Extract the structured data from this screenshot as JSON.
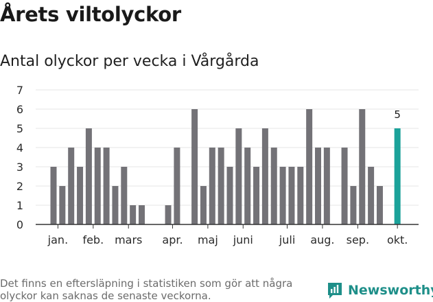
{
  "title": "Årets viltolyckor",
  "subtitle": "Antal olyckor per vecka i Vårgårda",
  "footnote": "Det finns en eftersläpning i statistiken som gör att några olyckor kan saknas de senaste veckorna.",
  "brand": {
    "name": "Newsworthy",
    "icon": "newsworthy-logo-icon",
    "color": "#1e8f89"
  },
  "colors": {
    "bar": "#737277",
    "highlight": "#1ba29a",
    "grid": "#e4e4e4",
    "axis": "#333333"
  },
  "chart_data": {
    "type": "bar",
    "x": [
      1,
      2,
      3,
      4,
      5,
      6,
      7,
      8,
      9,
      10,
      11,
      12,
      13,
      14,
      15,
      16,
      17,
      18,
      19,
      20,
      21,
      22,
      23,
      24,
      25,
      26,
      27,
      28,
      29,
      30,
      31,
      32,
      33,
      34,
      35,
      36,
      37,
      38,
      39,
      40
    ],
    "values": [
      3,
      2,
      4,
      3,
      5,
      4,
      4,
      2,
      3,
      1,
      1,
      0,
      0,
      1,
      4,
      0,
      6,
      2,
      4,
      4,
      3,
      5,
      4,
      3,
      5,
      4,
      3,
      3,
      3,
      6,
      4,
      4,
      0,
      4,
      2,
      6,
      3,
      2,
      0,
      5
    ],
    "highlight_index": 39,
    "data_labels": [
      {
        "index": 39,
        "text": "5"
      }
    ],
    "month_labels": [
      {
        "label": "jan.",
        "x": 1.5
      },
      {
        "label": "feb.",
        "x": 5.5
      },
      {
        "label": "mars",
        "x": 9.5
      },
      {
        "label": "apr.",
        "x": 14.5
      },
      {
        "label": "maj",
        "x": 18.5
      },
      {
        "label": "juni",
        "x": 22.5
      },
      {
        "label": "juli",
        "x": 27.5
      },
      {
        "label": "aug.",
        "x": 31.5
      },
      {
        "label": "sep.",
        "x": 35.5
      },
      {
        "label": "okt.",
        "x": 40
      }
    ],
    "yticks": [
      0,
      1,
      2,
      3,
      4,
      5,
      6,
      7
    ],
    "ylim": [
      0,
      7
    ],
    "grid": true
  }
}
